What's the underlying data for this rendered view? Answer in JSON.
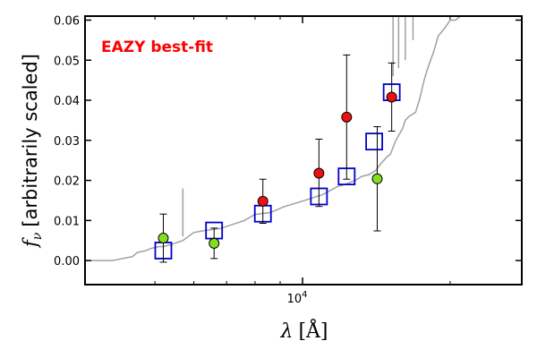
{
  "chart_data": {
    "type": "scatter",
    "title": "",
    "annotation": "EAZY best-fit",
    "annotation_color": "#ff0000",
    "xlabel_main": "λ",
    "xlabel_unit": "[Å]",
    "ylabel_math": "f",
    "ylabel_sub": "ν",
    "ylabel_text": "[arbitrarily scaled]",
    "x_scale": "log",
    "x_tick_labels": [
      {
        "x": 10000,
        "label": "10",
        "exp": "4"
      }
    ],
    "x_minor_ticks": [
      5000,
      6000,
      7000,
      8000,
      9000,
      20000
    ],
    "xlim": [
      3600,
      28000
    ],
    "ylim": [
      -0.006,
      0.061
    ],
    "y_ticks": [
      0.0,
      0.01,
      0.02,
      0.03,
      0.04,
      0.05,
      0.06
    ],
    "y_tick_labels": [
      "0.00",
      "0.01",
      "0.02",
      "0.03",
      "0.04",
      "0.05",
      "0.06"
    ],
    "grid": false,
    "colors": {
      "template": "#a0a0a0",
      "model_box": "#0000cc",
      "red_point": "#ee1111",
      "green_point": "#80e020",
      "errorbar": "#000000"
    },
    "series": [
      {
        "kind": "template",
        "x": [
          3600,
          4100,
          4500,
          4600,
          4800,
          4900,
          5100,
          5200,
          5400,
          5700,
          6000,
          6300,
          6800,
          7200,
          7600,
          8000,
          8600,
          9200,
          9800,
          10400,
          11000,
          11800,
          12200,
          12500,
          12800,
          13200,
          13700,
          14100,
          14400,
          14900,
          15100,
          15500,
          16000,
          16200,
          16500,
          17000,
          17300,
          17700,
          18000,
          18500,
          18900,
          19500,
          20000,
          20500,
          21000,
          22000
        ],
        "y": [
          0.0,
          0.0,
          0.001,
          0.002,
          0.0025,
          0.003,
          0.0035,
          0.0035,
          0.004,
          0.005,
          0.007,
          0.0075,
          0.008,
          0.009,
          0.01,
          0.0115,
          0.012,
          0.0135,
          0.0145,
          0.0155,
          0.0165,
          0.0185,
          0.019,
          0.0195,
          0.02,
          0.021,
          0.0215,
          0.0225,
          0.024,
          0.026,
          0.0265,
          0.03,
          0.033,
          0.035,
          0.036,
          0.037,
          0.04,
          0.045,
          0.048,
          0.052,
          0.056,
          0.058,
          0.06,
          0.06,
          0.061,
          0.061
        ]
      },
      {
        "kind": "model_boxes",
        "x": [
          5200,
          6600,
          8300,
          10800,
          12300,
          14000,
          15200
        ],
        "y": [
          0.0025,
          0.0075,
          0.0117,
          0.016,
          0.021,
          0.0297,
          0.042
        ]
      },
      {
        "kind": "red_points",
        "x": [
          8300,
          10800,
          12300,
          15200
        ],
        "y": [
          0.0148,
          0.0218,
          0.0358,
          0.0408
        ],
        "err_low": [
          0.0055,
          0.0083,
          0.0155,
          0.0085
        ],
        "err_high": [
          0.0055,
          0.0085,
          0.0155,
          0.0085
        ]
      },
      {
        "kind": "green_points",
        "x": [
          5200,
          6600,
          14200
        ],
        "y": [
          0.0056,
          0.0043,
          0.0204
        ],
        "err_low": [
          0.006,
          0.0038,
          0.013
        ],
        "err_high": [
          0.006,
          0.0038,
          0.013
        ]
      }
    ],
    "features": [
      {
        "x": 5700,
        "y_top": 0.018,
        "y_base": 0.006
      },
      {
        "x": 15300,
        "y_top": 0.061,
        "y_base": 0.046
      },
      {
        "x": 15700,
        "y_top": 0.061,
        "y_base": 0.048
      },
      {
        "x": 16200,
        "y_top": 0.061,
        "y_base": 0.05
      },
      {
        "x": 16800,
        "y_top": 0.061,
        "y_base": 0.055
      }
    ]
  }
}
